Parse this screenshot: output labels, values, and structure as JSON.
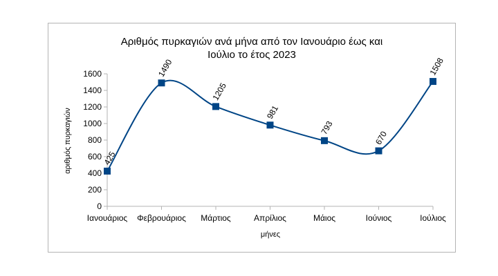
{
  "chart_data": {
    "type": "line",
    "smooth": true,
    "title_line1": "Αριθμός πυρκαγιών ανά μήνα από τον Ιανουάριο έως και",
    "title_line2": "Ιούλιο το έτος 2023",
    "xlabel": "μήνες",
    "ylabel": "αριθμός πυρκαγιών",
    "categories": [
      "Ιανουάριος",
      "Φεβρουάριος",
      "Μάρτιος",
      "Απρίλιος",
      "Μάιος",
      "Ιούνιος",
      "Ιούλιος"
    ],
    "values": [
      425,
      1490,
      1205,
      981,
      793,
      670,
      1508
    ],
    "data_labels": [
      "425",
      "1490",
      "1205",
      "981",
      "793",
      "670",
      "1508"
    ],
    "ylim": [
      0,
      1600
    ],
    "yticks": [
      "0",
      "200",
      "400",
      "600",
      "800",
      "1000",
      "1200",
      "1400",
      "1600"
    ],
    "grid": false,
    "legend": "none",
    "line_color": "#004586",
    "marker": "square"
  }
}
